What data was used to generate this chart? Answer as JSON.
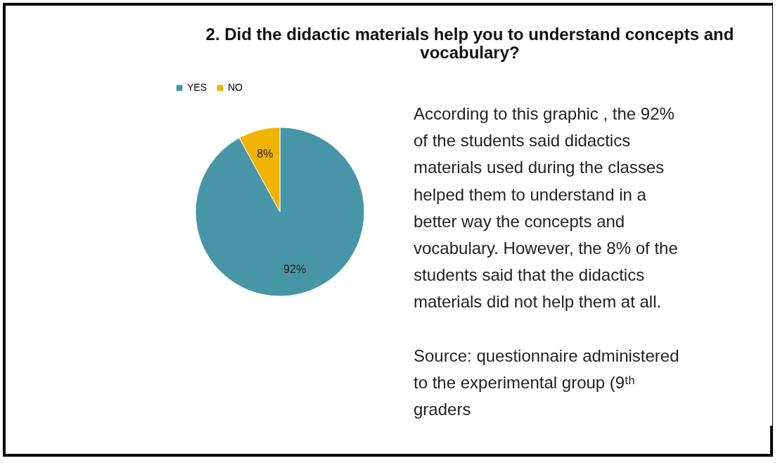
{
  "chart_data": {
    "type": "pie",
    "title": "2. Did the didactic materials help you to understand concepts and vocabulary?",
    "categories": [
      "YES",
      "NO"
    ],
    "values": [
      92,
      8
    ],
    "colors": [
      "#4796a8",
      "#f2b300"
    ],
    "value_labels": [
      "92%",
      "8%"
    ],
    "legend": "top",
    "annotations": [
      "According to this graphic , the 92% of the students  said  didactics materials used during the classes  helped them to understand  in a better way the concepts  and vocabulary.  However, the 8% of the students said that the didactics materials did not help them at all.",
      "Source: questionnaire administered to the experimental group (9ᵗʰ graders"
    ]
  }
}
